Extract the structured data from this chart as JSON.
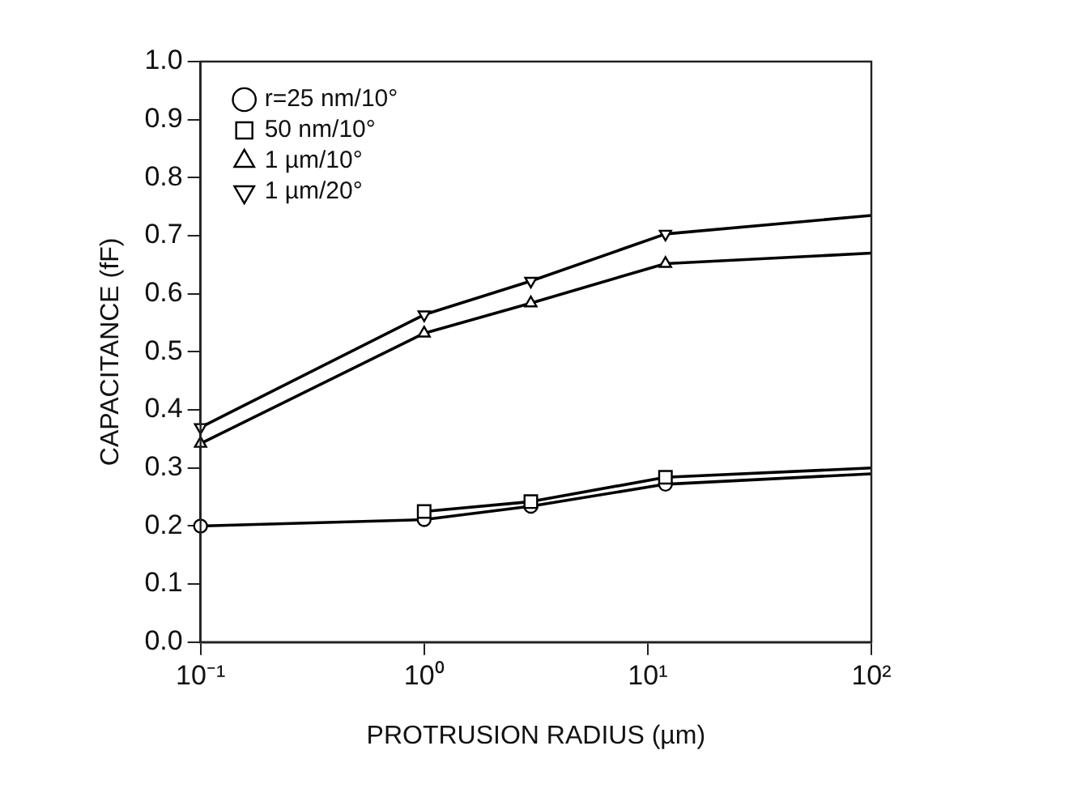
{
  "chart_data": {
    "type": "line",
    "xlabel": "PROTRUSION RADIUS (µm)",
    "ylabel": "CAPACITANCE (fF)",
    "log": "x",
    "xlim": [
      0.1,
      100
    ],
    "xticks": [
      {
        "value": 0.1,
        "label": "10⁻¹"
      },
      {
        "value": 1,
        "label": "10⁰"
      },
      {
        "value": 10,
        "label": "10¹"
      },
      {
        "value": 100,
        "label": "10²"
      }
    ],
    "ylim": [
      0,
      1
    ],
    "yticks": [
      {
        "value": 0,
        "label": "0.0"
      },
      0.1,
      0.2,
      0.3,
      0.4,
      0.5,
      0.6,
      0.7,
      0.8,
      0.9,
      {
        "value": 1,
        "label": "1.0"
      }
    ],
    "grid": false,
    "legend": "top left",
    "line_style": "solid",
    "x": [
      0.1,
      1,
      3,
      12,
      100
    ],
    "series": [
      {
        "name": "r=25 nm/10°",
        "color": "#000000",
        "marker": "circle",
        "values": [
          0.2,
          0.211,
          0.234,
          0.272,
          0.29
        ]
      },
      {
        "name": "50 nm/10°",
        "color": "#000000",
        "marker": "square",
        "values": [
          null,
          0.225,
          0.242,
          0.284,
          0.3
        ]
      },
      {
        "name": "1 µm/10°",
        "color": "#000000",
        "marker": "triangle",
        "values": [
          0.342,
          0.532,
          0.584,
          0.652,
          0.67
        ]
      },
      {
        "name": "1 µm/20°",
        "color": "#000000",
        "marker": "triangle-down",
        "values": [
          0.37,
          0.564,
          0.622,
          0.703,
          0.735
        ]
      }
    ]
  }
}
